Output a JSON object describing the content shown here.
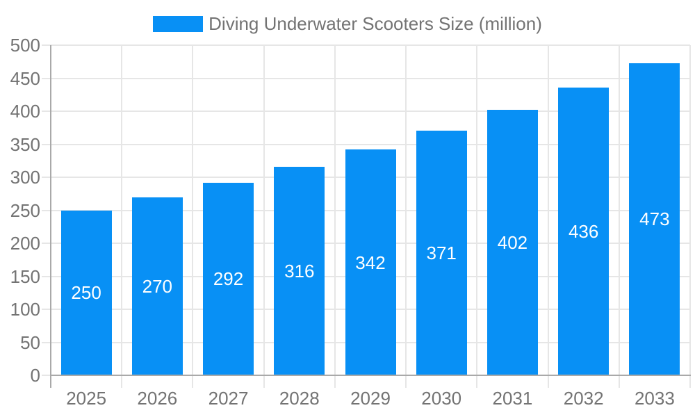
{
  "chart_data": {
    "type": "bar",
    "title": "Diving Underwater Scooters Size (million)",
    "categories": [
      "2025",
      "2026",
      "2027",
      "2028",
      "2029",
      "2030",
      "2031",
      "2032",
      "2033"
    ],
    "values": [
      250,
      270,
      292,
      316,
      342,
      371,
      402,
      436,
      473
    ],
    "xlabel": "",
    "ylabel": "",
    "ylim": [
      0,
      500
    ],
    "ytick_step": 50,
    "grid": true,
    "legend_position": "top-center",
    "value_labels": "inside-center",
    "palette": {
      "bar": "#0890f5",
      "grid": "#e6e6e6",
      "axis": "#a9a9a9",
      "text": "#737373",
      "value_label": "#ffffff",
      "background": "#ffffff"
    }
  }
}
